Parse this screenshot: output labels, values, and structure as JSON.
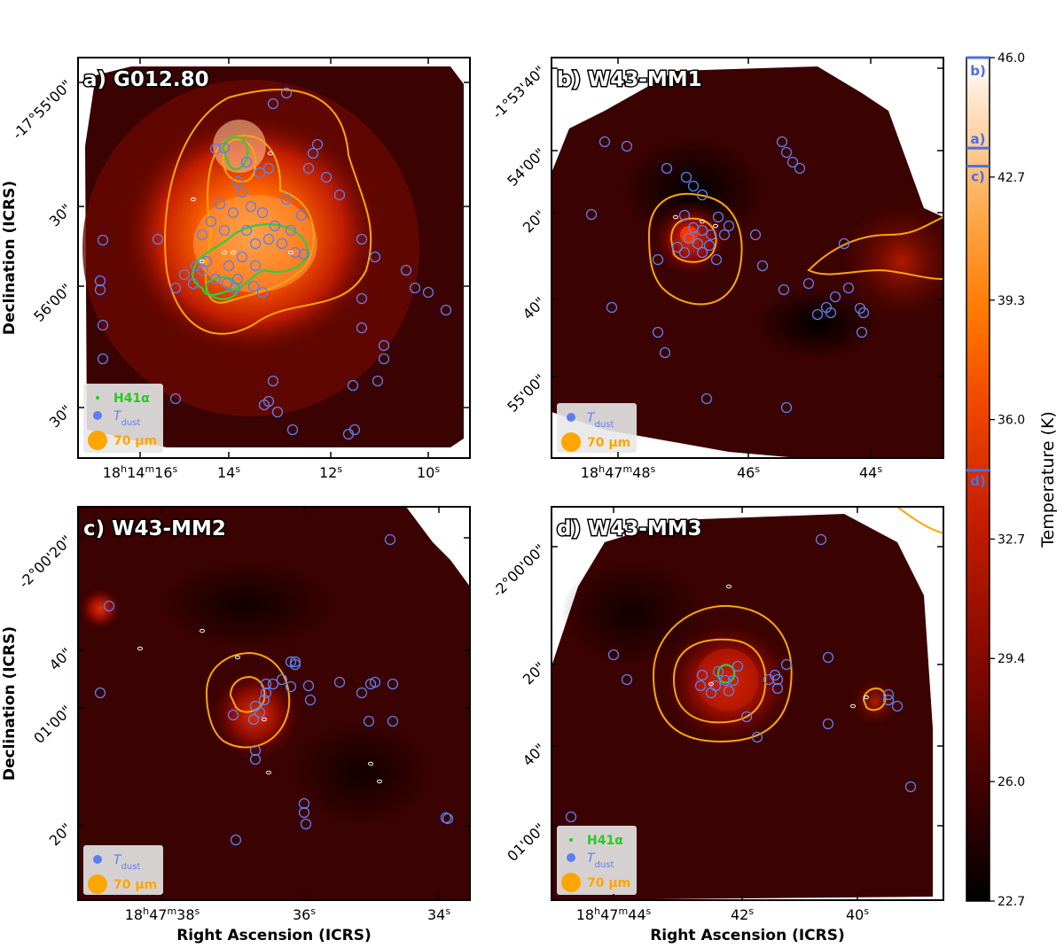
{
  "chart_data": [
    {
      "type": "heatmap",
      "panel_label": "a) G012.80",
      "ylabel": "Declination (ICRS)",
      "xlabel": "",
      "x_ticks": [
        {
          "label": "18h14m16s",
          "ra_s": 16
        },
        {
          "label": "14s",
          "ra_s": 14
        },
        {
          "label": "12s",
          "ra_s": 12
        },
        {
          "label": "10s",
          "ra_s": 10
        }
      ],
      "y_ticks": [
        "-17°55'00\"",
        "30\"",
        "56'00\"",
        "30\""
      ],
      "legend": [
        "H41α",
        "T_dust",
        "70 μm"
      ],
      "peak_temperature": 43.5,
      "peak_description": "hot bright central region with two green H41α contour groups",
      "contours_70um_levels": 3,
      "tdust_circle_count": 72,
      "h41a_contours": true
    },
    {
      "type": "heatmap",
      "panel_label": "b) W43-MM1",
      "ylabel": "",
      "xlabel": "",
      "x_ticks": [
        {
          "label": "18h47m48s",
          "ra_s": 48
        },
        {
          "label": "46s",
          "ra_s": 46
        },
        {
          "label": "44s",
          "ra_s": 44
        }
      ],
      "y_ticks": [
        "-1°53'40\"",
        "54'00\"",
        "20\"",
        "40\"",
        "55'00\""
      ],
      "legend": [
        "T_dust",
        "70 μm"
      ],
      "peak_temperature": 46.0,
      "contours_70um_levels": 2,
      "tdust_circle_count": 44,
      "h41a_contours": false
    },
    {
      "type": "heatmap",
      "panel_label": "c) W43-MM2",
      "ylabel": "Declination (ICRS)",
      "xlabel": "Right Ascension (ICRS)",
      "x_ticks": [
        {
          "label": "18h47m38s",
          "ra_s": 38
        },
        {
          "label": "36s",
          "ra_s": 36
        },
        {
          "label": "34s",
          "ra_s": 34
        }
      ],
      "y_ticks": [
        "-2°00'20\"",
        "40\"",
        "01'00\"",
        "20\""
      ],
      "legend": [
        "T_dust",
        "70 μm"
      ],
      "peak_temperature": 43.0,
      "contours_70um_levels": 2,
      "tdust_circle_count": 33,
      "h41a_contours": false
    },
    {
      "type": "heatmap",
      "panel_label": "d) W43-MM3",
      "ylabel": "",
      "xlabel": "Right Ascension (ICRS)",
      "x_ticks": [
        {
          "label": "18h47m44s",
          "ra_s": 44
        },
        {
          "label": "42s",
          "ra_s": 42
        },
        {
          "label": "40s",
          "ra_s": 40
        }
      ],
      "y_ticks": [
        "-2°00'00\"",
        "20\"",
        "40\"",
        "01'00\""
      ],
      "legend": [
        "H41α",
        "T_dust",
        "70 μm"
      ],
      "peak_temperature": 34.6,
      "contours_70um_levels": 2,
      "tdust_circle_count": 26,
      "h41a_contours": true
    }
  ],
  "colorbar": {
    "label": "Temperature (K)",
    "min": 22.7,
    "max": 46.0,
    "ticks": [
      "46.0",
      "42.7",
      "39.3",
      "36.0",
      "32.7",
      "29.4",
      "26.0",
      "22.7"
    ],
    "markers": [
      {
        "label": "b)",
        "value": 46.0
      },
      {
        "label": "a)",
        "value": 43.5
      },
      {
        "label": "c)",
        "value": 43.0
      },
      {
        "label": "d)",
        "value": 34.6
      }
    ]
  },
  "colors": {
    "tdust": "#5b7ff0",
    "contour_70um": "#ffa500",
    "h41a": "#2ecc40",
    "h41a_legend": "#22cc22",
    "colormap": [
      "#000000",
      "#3a0000",
      "#8a0a00",
      "#c41d00",
      "#ee4400",
      "#ff7a00",
      "#ffab50",
      "#ffd7b0",
      "#ffffff"
    ]
  }
}
